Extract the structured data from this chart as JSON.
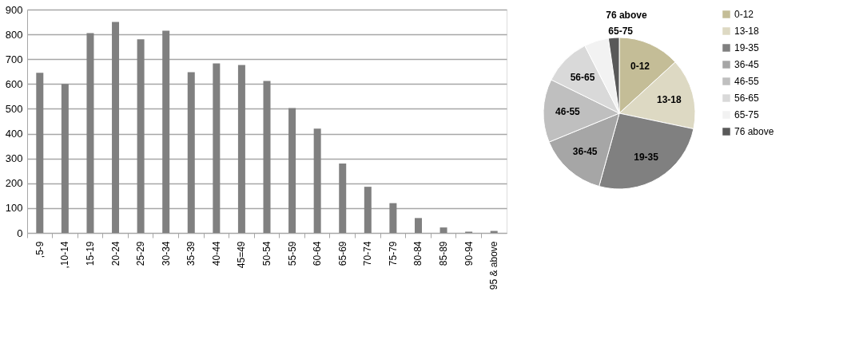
{
  "chart_data": [
    {
      "type": "bar",
      "categories": [
        ",5-9",
        ",10-14",
        "15-19",
        "20-24",
        "25-29",
        "30-34",
        "35-39",
        "40-44",
        "45=49",
        "50-54",
        "55-59",
        "60-64",
        "65-69",
        "70-74",
        "75-79",
        "80-84",
        "85-89",
        "90-94",
        "95 & above"
      ],
      "values": [
        645,
        600,
        805,
        850,
        780,
        815,
        648,
        683,
        677,
        612,
        503,
        420,
        280,
        186,
        120,
        60,
        22,
        5,
        8
      ],
      "color": "#808080",
      "ylim": [
        0,
        900
      ],
      "yticks": [
        0,
        100,
        200,
        300,
        400,
        500,
        600,
        700,
        800,
        900
      ],
      "grid": "y"
    },
    {
      "type": "pie",
      "categories": [
        "0-12",
        "13-18",
        "19-35",
        "36-45",
        "46-55",
        "56-65",
        "65-75",
        "76 above"
      ],
      "values": [
        13.2,
        15.1,
        26.0,
        14.5,
        13.5,
        10.2,
        5.2,
        2.3
      ],
      "colors": [
        "#c4bd97",
        "#ddd9c3",
        "#808080",
        "#a6a6a6",
        "#bfbfbf",
        "#d9d9d9",
        "#f2f2f2",
        "#595959"
      ],
      "legend": "right"
    }
  ]
}
